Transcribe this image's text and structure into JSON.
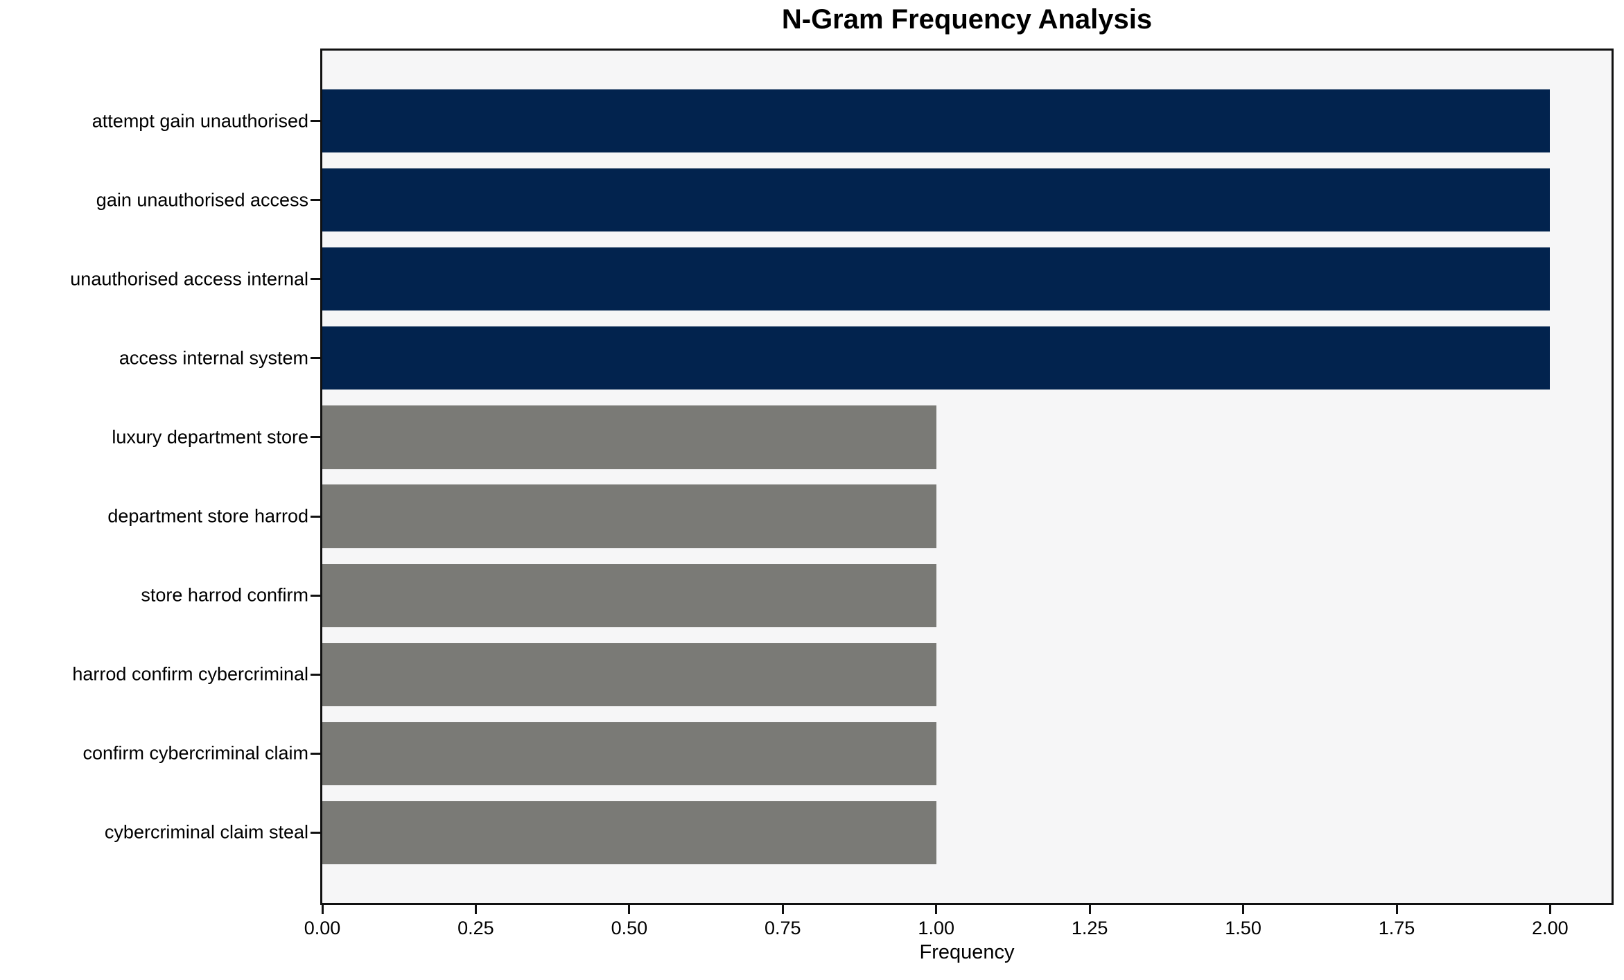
{
  "chart_data": {
    "type": "bar",
    "orientation": "horizontal",
    "title": "N-Gram Frequency Analysis",
    "xlabel": "Frequency",
    "ylabel": "",
    "categories": [
      "attempt gain unauthorised",
      "gain unauthorised access",
      "unauthorised access internal",
      "access internal system",
      "luxury department store",
      "department store harrod",
      "store harrod confirm",
      "harrod confirm cybercriminal",
      "confirm cybercriminal claim",
      "cybercriminal claim steal"
    ],
    "values": [
      2,
      2,
      2,
      2,
      1,
      1,
      1,
      1,
      1,
      1
    ],
    "bar_colors": [
      "#02234e",
      "#02234e",
      "#02234e",
      "#02234e",
      "#7a7a76",
      "#7a7a76",
      "#7a7a76",
      "#7a7a76",
      "#7a7a76",
      "#7a7a76"
    ],
    "xlim": [
      0,
      2.1
    ],
    "xticks": [
      0,
      0.25,
      0.5,
      0.75,
      1.0,
      1.25,
      1.5,
      1.75,
      2.0
    ],
    "xtick_labels": [
      "0.00",
      "0.25",
      "0.50",
      "0.75",
      "1.00",
      "1.25",
      "1.50",
      "1.75",
      "2.00"
    ],
    "grid": false,
    "legend": null,
    "colors": {
      "high_frequency_bar": "#02234e",
      "low_frequency_bar": "#7a7a76",
      "plot_background": "#f6f6f7",
      "figure_background": "#ffffff",
      "spine": "#111111",
      "text": "#000000"
    }
  }
}
